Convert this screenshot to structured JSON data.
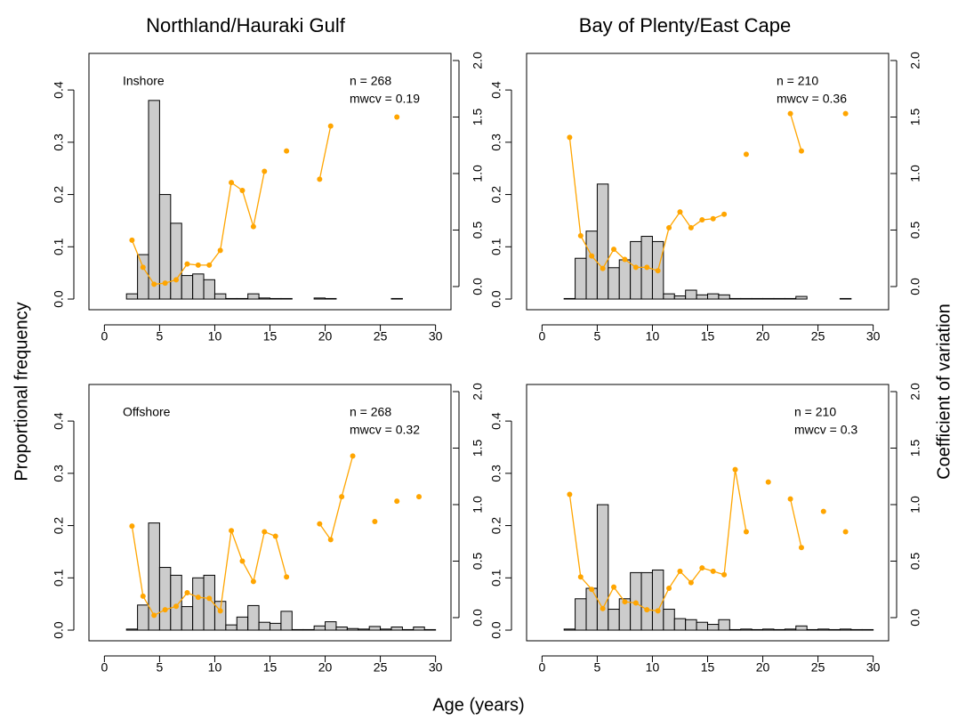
{
  "column_titles": [
    "Northland/Hauraki Gulf",
    "Bay of Plenty/East Cape"
  ],
  "xlabel": "Age (years)",
  "ylabel": "Proportional frequency",
  "y2label": "Coefficient of variation",
  "chart_data": [
    {
      "type": "bar",
      "subtitle": "Inshore",
      "annotations": [
        "n = 268",
        "mwcv = 0.19"
      ],
      "x": [
        3,
        4,
        5,
        6,
        7,
        8,
        9,
        10,
        11,
        12,
        13,
        14,
        15,
        16,
        17,
        18,
        19,
        20,
        21,
        22,
        23,
        24,
        25,
        26,
        27,
        28,
        29,
        30
      ],
      "series": [
        {
          "color": "#cccccc",
          "values": [
            0.01,
            0.085,
            0.38,
            0.2,
            0.145,
            0.045,
            0.048,
            0.037,
            0.01,
            0.001,
            0.001,
            0.01,
            0.002,
            0.001,
            0.001,
            0,
            0,
            0.002,
            0.001,
            0,
            0,
            0,
            0,
            0,
            0.001,
            0,
            0,
            0
          ]
        },
        {
          "color": "#ffa500",
          "axis": "y2",
          "type": "line",
          "values": [
            0.41,
            0.17,
            0.02,
            0.03,
            0.06,
            0.2,
            0.19,
            0.19,
            0.32,
            0.92,
            0.85,
            0.53,
            1.02,
            null,
            1.2,
            null,
            null,
            0.95,
            1.42,
            null,
            null,
            null,
            null,
            null,
            1.5,
            null,
            null,
            null
          ]
        }
      ],
      "xlim": [
        -1.4,
        31.4
      ],
      "ylim": [
        -0.0204,
        0.47
      ],
      "y2lim": [
        -0.205,
        2.063
      ],
      "xticks": [
        0,
        5,
        10,
        15,
        20,
        25,
        30
      ],
      "yticks": [
        {
          "value": 0,
          "label": "0.0"
        },
        0.1,
        0.2,
        0.3,
        0.4
      ],
      "y2ticks": [
        {
          "value": 0,
          "label": "0.0"
        },
        0.5,
        {
          "value": 1,
          "label": "1.0"
        },
        1.5,
        {
          "value": 2,
          "label": "2.0"
        }
      ]
    },
    {
      "type": "bar",
      "annotations": [
        "n = 210",
        "mwcv = 0.36"
      ],
      "x": [
        3,
        4,
        5,
        6,
        7,
        8,
        9,
        10,
        11,
        12,
        13,
        14,
        15,
        16,
        17,
        18,
        19,
        20,
        21,
        22,
        23,
        24,
        25,
        26,
        27,
        28,
        29,
        30
      ],
      "series": [
        {
          "color": "#cccccc",
          "values": [
            0.001,
            0.078,
            0.13,
            0.22,
            0.06,
            0.075,
            0.11,
            0.12,
            0.11,
            0.01,
            0.006,
            0.017,
            0.008,
            0.01,
            0.008,
            0.001,
            0.001,
            0.001,
            0.001,
            0.001,
            0.001,
            0.005,
            0,
            0,
            0,
            0.001,
            0,
            0
          ]
        },
        {
          "color": "#ffa500",
          "axis": "y2",
          "type": "line",
          "values": [
            1.32,
            0.45,
            0.27,
            0.16,
            0.33,
            0.24,
            0.17,
            0.17,
            0.14,
            0.52,
            0.66,
            0.52,
            0.59,
            0.6,
            0.64,
            null,
            1.17,
            null,
            null,
            null,
            1.53,
            1.2,
            null,
            null,
            null,
            1.53,
            null,
            null
          ]
        }
      ],
      "xlim": [
        -1.4,
        31.4
      ],
      "ylim": [
        -0.0204,
        0.47
      ],
      "y2lim": [
        -0.205,
        2.063
      ],
      "xticks": [
        0,
        5,
        10,
        15,
        20,
        25,
        30
      ],
      "yticks": [
        {
          "value": 0,
          "label": "0.0"
        },
        0.1,
        0.2,
        0.3,
        0.4
      ],
      "y2ticks": [
        {
          "value": 0,
          "label": "0.0"
        },
        0.5,
        {
          "value": 1,
          "label": "1.0"
        },
        1.5,
        {
          "value": 2,
          "label": "2.0"
        }
      ]
    },
    {
      "type": "bar",
      "subtitle": "Offshore",
      "annotations": [
        "n = 268",
        "mwcv = 0.32"
      ],
      "x": [
        3,
        4,
        5,
        6,
        7,
        8,
        9,
        10,
        11,
        12,
        13,
        14,
        15,
        16,
        17,
        18,
        19,
        20,
        21,
        22,
        23,
        24,
        25,
        26,
        27,
        28,
        29,
        30
      ],
      "series": [
        {
          "color": "#cccccc",
          "values": [
            0.002,
            0.048,
            0.205,
            0.12,
            0.105,
            0.045,
            0.1,
            0.105,
            0.055,
            0.01,
            0.025,
            0.047,
            0.015,
            0.013,
            0.036,
            0.001,
            0.001,
            0.008,
            0.016,
            0.006,
            0.003,
            0.002,
            0.007,
            0.002,
            0.006,
            0.001,
            0.006,
            0.001
          ]
        },
        {
          "color": "#ffa500",
          "axis": "y2",
          "type": "line",
          "values": [
            0.81,
            0.19,
            0.02,
            0.07,
            0.1,
            0.22,
            0.18,
            0.17,
            0.06,
            0.77,
            0.5,
            0.32,
            0.76,
            0.72,
            0.36,
            null,
            null,
            0.83,
            0.69,
            1.07,
            1.43,
            null,
            0.85,
            null,
            1.03,
            null,
            1.07,
            null
          ]
        }
      ],
      "xlim": [
        -1.4,
        31.4
      ],
      "ylim": [
        -0.0204,
        0.47
      ],
      "y2lim": [
        -0.205,
        2.063
      ],
      "xticks": [
        0,
        5,
        10,
        15,
        20,
        25,
        30
      ],
      "yticks": [
        {
          "value": 0,
          "label": "0.0"
        },
        0.1,
        0.2,
        0.3,
        0.4
      ],
      "y2ticks": [
        {
          "value": 0,
          "label": "0.0"
        },
        0.5,
        {
          "value": 1,
          "label": "1.0"
        },
        1.5,
        {
          "value": 2,
          "label": "2.0"
        }
      ]
    },
    {
      "type": "bar",
      "annotations": [
        "n = 210",
        "mwcv = 0.3"
      ],
      "x": [
        3,
        4,
        5,
        6,
        7,
        8,
        9,
        10,
        11,
        12,
        13,
        14,
        15,
        16,
        17,
        18,
        19,
        20,
        21,
        22,
        23,
        24,
        25,
        26,
        27,
        28,
        29,
        30
      ],
      "series": [
        {
          "color": "#cccccc",
          "values": [
            0.002,
            0.06,
            0.08,
            0.24,
            0.04,
            0.06,
            0.11,
            0.11,
            0.115,
            0.04,
            0.022,
            0.02,
            0.015,
            0.011,
            0.02,
            0.001,
            0.002,
            0.001,
            0.002,
            0.001,
            0.002,
            0.008,
            0.001,
            0.002,
            0.001,
            0.002,
            0.001,
            0.001
          ]
        },
        {
          "color": "#ffa500",
          "axis": "y2",
          "type": "line",
          "values": [
            1.09,
            0.36,
            0.25,
            0.08,
            0.27,
            0.14,
            0.13,
            0.07,
            0.06,
            0.26,
            0.41,
            0.31,
            0.44,
            0.41,
            0.38,
            1.31,
            0.76,
            null,
            1.2,
            null,
            1.05,
            0.62,
            null,
            0.94,
            null,
            0.76,
            null,
            null
          ]
        }
      ],
      "xlim": [
        -1.4,
        31.4
      ],
      "ylim": [
        -0.0204,
        0.47
      ],
      "y2lim": [
        -0.205,
        2.063
      ],
      "xticks": [
        0,
        5,
        10,
        15,
        20,
        25,
        30
      ],
      "yticks": [
        {
          "value": 0,
          "label": "0.0"
        },
        0.1,
        0.2,
        0.3,
        0.4
      ],
      "y2ticks": [
        {
          "value": 0,
          "label": "0.0"
        },
        0.5,
        {
          "value": 1,
          "label": "1.0"
        },
        1.5,
        {
          "value": 2,
          "label": "2.0"
        }
      ]
    }
  ]
}
